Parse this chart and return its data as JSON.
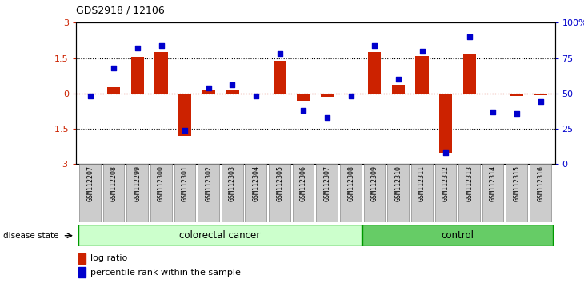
{
  "title": "GDS2918 / 12106",
  "samples": [
    "GSM112207",
    "GSM112208",
    "GSM112299",
    "GSM112300",
    "GSM112301",
    "GSM112302",
    "GSM112303",
    "GSM112304",
    "GSM112305",
    "GSM112306",
    "GSM112307",
    "GSM112308",
    "GSM112309",
    "GSM112310",
    "GSM112311",
    "GSM112312",
    "GSM112313",
    "GSM112314",
    "GSM112315",
    "GSM112316"
  ],
  "log_ratio": [
    -0.05,
    0.25,
    1.55,
    1.75,
    -1.8,
    0.12,
    0.15,
    -0.05,
    1.4,
    -0.3,
    -0.15,
    -0.05,
    1.75,
    0.35,
    1.6,
    -2.55,
    1.65,
    -0.05,
    -0.12,
    -0.08
  ],
  "percentile": [
    48,
    68,
    82,
    84,
    24,
    54,
    56,
    48,
    78,
    38,
    33,
    48,
    84,
    60,
    80,
    8,
    90,
    37,
    36,
    44
  ],
  "colorectal_count": 12,
  "control_count": 8,
  "bar_color": "#cc2200",
  "dot_color": "#0000cc",
  "ylim_left": [
    -3,
    3
  ],
  "ylim_right": [
    0,
    100
  ],
  "yticks_left": [
    -3,
    -1.5,
    0,
    1.5,
    3
  ],
  "yticks_right": [
    0,
    25,
    50,
    75,
    100
  ],
  "ytick_labels_left": [
    "-3",
    "-1.5",
    "0",
    "1.5",
    "3"
  ],
  "ytick_labels_right": [
    "0",
    "25",
    "50",
    "75",
    "100%"
  ],
  "dotted_lines": [
    -1.5,
    1.5
  ],
  "colorectal_label": "colorectal cancer",
  "control_label": "control",
  "disease_state_label": "disease state",
  "legend_bar_label": "log ratio",
  "legend_dot_label": "percentile rank within the sample",
  "colorectal_color": "#ccffcc",
  "control_color": "#66cc66",
  "group_border": "#009900",
  "label_box_color": "#cccccc",
  "label_box_edge": "#888888"
}
